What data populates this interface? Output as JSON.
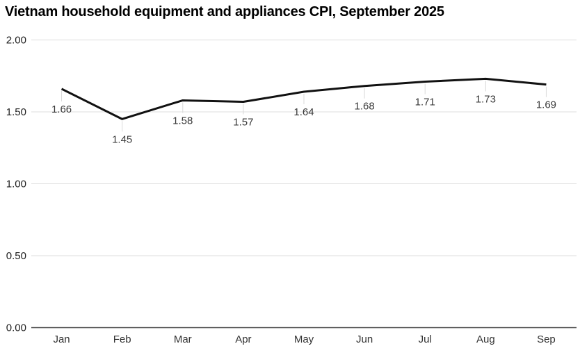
{
  "title": "Vietnam household equipment and appliances CPI, September 2025",
  "chart_data": {
    "type": "line",
    "title": "Vietnam household equipment and appliances CPI, September 2025",
    "categories": [
      "Jan",
      "Feb",
      "Mar",
      "Apr",
      "May",
      "Jun",
      "Jul",
      "Aug",
      "Sep"
    ],
    "series": [
      {
        "name": "Household equipment and appliances CPI",
        "values": [
          1.66,
          1.45,
          1.58,
          1.57,
          1.64,
          1.68,
          1.71,
          1.73,
          1.69
        ]
      }
    ],
    "data_labels": [
      "1.66",
      "1.45",
      "1.58",
      "1.57",
      "1.64",
      "1.68",
      "1.71",
      "1.73",
      "1.69"
    ],
    "xlabel": "",
    "ylabel": "",
    "ylim": [
      0,
      2
    ],
    "yticks": [
      0.0,
      0.5,
      1.0,
      1.5,
      2.0
    ],
    "ytick_labels": [
      "0.00",
      "0.50",
      "1.00",
      "1.50",
      "2.00"
    ],
    "grid": true,
    "legend": "none",
    "colors": {
      "line": "#111111",
      "grid": "#dcdcdc",
      "zero_axis": "#444444",
      "y_tick_label": "#212121",
      "x_tick_label": "#333333",
      "data_label": "#3a3a3a",
      "leader": "#d9d9d9",
      "title": "#000000",
      "background": "#ffffff"
    }
  }
}
